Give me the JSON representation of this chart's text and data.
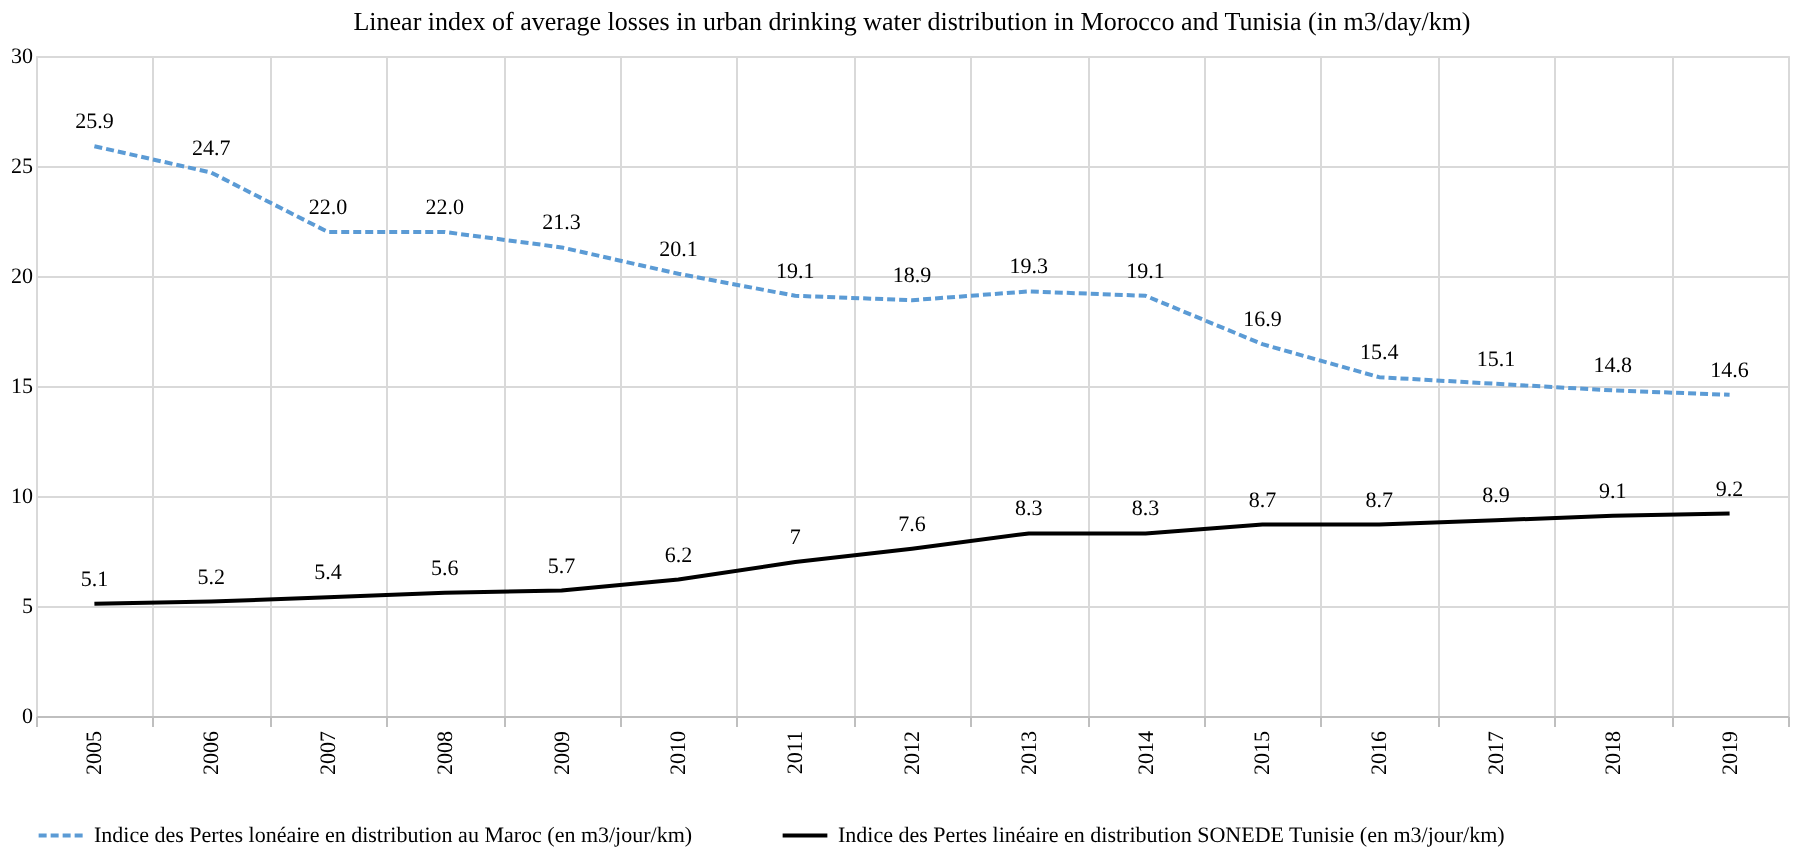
{
  "chart_data": {
    "type": "line",
    "title": "Linear index of average losses in urban drinking water distribution in Morocco and Tunisia (in m3/day/km)",
    "categories": [
      "2005",
      "2006",
      "2007",
      "2008",
      "2009",
      "2010",
      "2011",
      "2012",
      "2013",
      "2014",
      "2015",
      "2016",
      "2017",
      "2018",
      "2019"
    ],
    "series": [
      {
        "name": "Indice des Pertes lonéaire en distribution au Maroc (en m3/jour/km)",
        "color": "#5b9bd5",
        "line_style": "dashed",
        "values": [
          25.9,
          24.7,
          22.0,
          22.0,
          21.3,
          20.1,
          19.1,
          18.9,
          19.3,
          19.1,
          16.9,
          15.4,
          15.1,
          14.8,
          14.6
        ],
        "value_labels": [
          "25.9",
          "24.7",
          "22.0",
          "22.0",
          "21.3",
          "20.1",
          "19.1",
          "18.9",
          "19.3",
          "19.1",
          "16.9",
          "15.4",
          "15.1",
          "14.8",
          "14.6"
        ]
      },
      {
        "name": "Indice des Pertes linéaire en distribution SONEDE Tunisie (en m3/jour/km)",
        "color": "#000000",
        "line_style": "solid",
        "values": [
          5.1,
          5.2,
          5.4,
          5.6,
          5.7,
          6.2,
          7,
          7.6,
          8.3,
          8.3,
          8.7,
          8.7,
          8.9,
          9.1,
          9.2
        ],
        "value_labels": [
          "5.1",
          "5.2",
          "5.4",
          "5.6",
          "5.7",
          "6.2",
          "7",
          "7.6",
          "8.3",
          "8.3",
          "8.7",
          "8.7",
          "8.9",
          "9.1",
          "9.2"
        ]
      }
    ],
    "ylim": [
      0,
      30
    ],
    "yticks": [
      0,
      5,
      10,
      15,
      20,
      25,
      30
    ],
    "grid": true,
    "legend": "bottom",
    "marker": "none"
  }
}
